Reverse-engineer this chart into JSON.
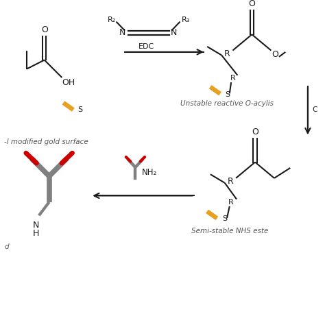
{
  "bg_color": "#ffffff",
  "line_color": "#1a1a1a",
  "gold_color": "#E8A020",
  "ab_body_color": "#808080",
  "ab_red_color": "#CC0000",
  "label_color": "#555555",
  "edc_text": "EDC",
  "label_tl": "-l modified gold surface",
  "label_tr": "Unstable reactive O-acylis",
  "label_br": "Semi-stable NHS este",
  "label_bl": "d",
  "nh2_label": "NH₂",
  "arrow_color": "#1a1a1a"
}
